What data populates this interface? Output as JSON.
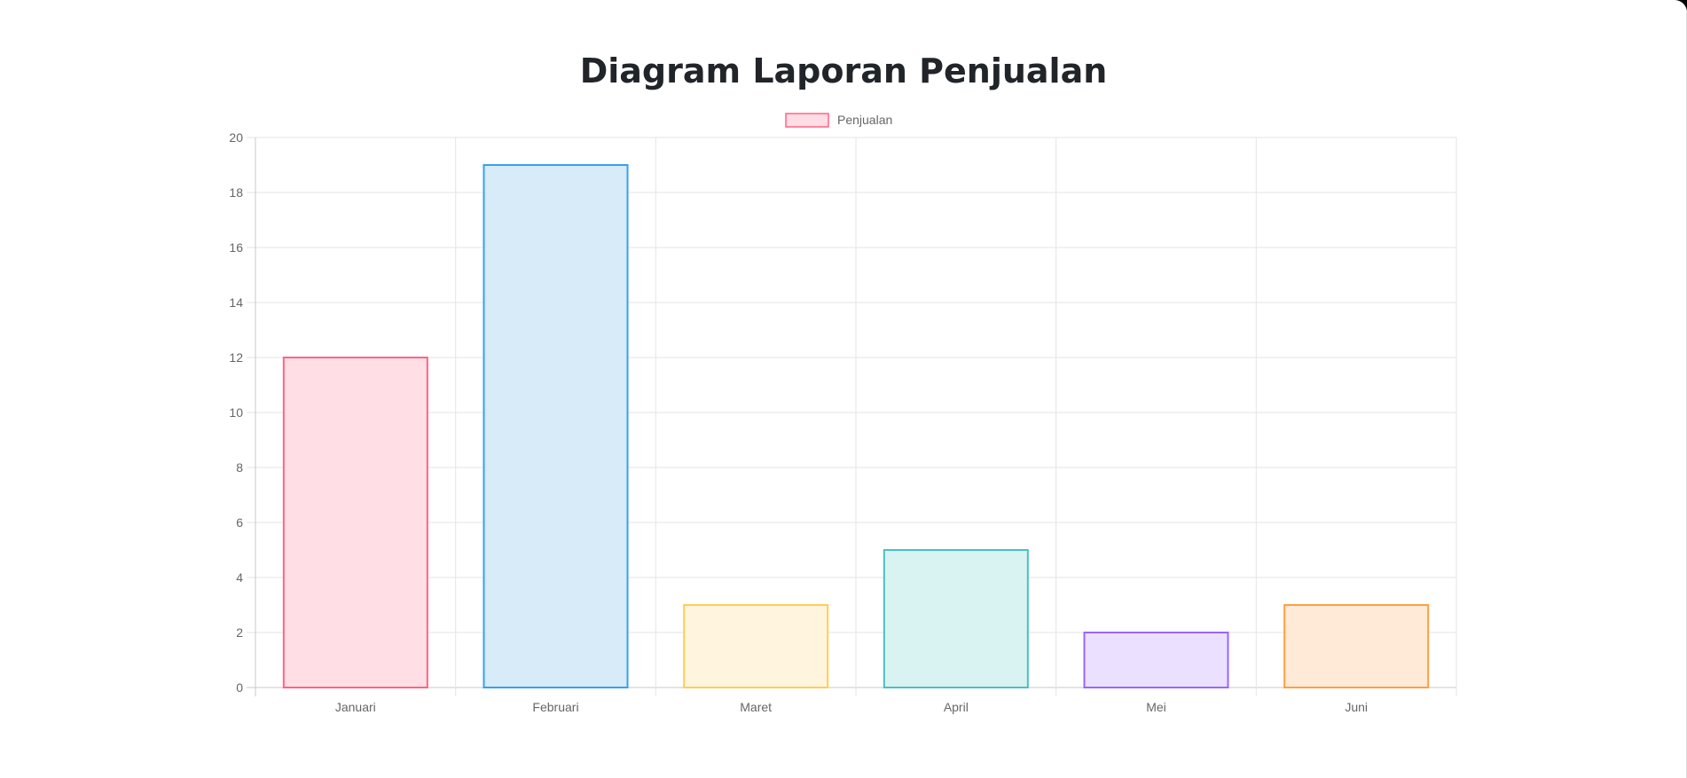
{
  "chart_data": {
    "type": "bar",
    "title": "Diagram Laporan Penjualan",
    "categories": [
      "Januari",
      "Februari",
      "Maret",
      "April",
      "Mei",
      "Juni"
    ],
    "series": [
      {
        "name": "Penjualan",
        "values": [
          12,
          19,
          3,
          5,
          2,
          3
        ]
      }
    ],
    "ylim": [
      0,
      20
    ],
    "yticks": [
      "0",
      "2",
      "4",
      "6",
      "8",
      "10",
      "12",
      "14",
      "16",
      "18",
      "20"
    ],
    "grid": true,
    "legend_position": "top",
    "legend_color": {
      "fill": "#ffdde4",
      "stroke": "#ff6384"
    },
    "bar_colors": [
      {
        "fill": "#ffdfe5",
        "stroke": "#ff6384"
      },
      {
        "fill": "#d7ebf8",
        "stroke": "#36a2eb"
      },
      {
        "fill": "#fff4dd",
        "stroke": "#ffce56"
      },
      {
        "fill": "#d9f2f2",
        "stroke": "#4bc0c0"
      },
      {
        "fill": "#ebe0ff",
        "stroke": "#9966ff"
      },
      {
        "fill": "#ffead7",
        "stroke": "#ff9f40"
      }
    ]
  }
}
